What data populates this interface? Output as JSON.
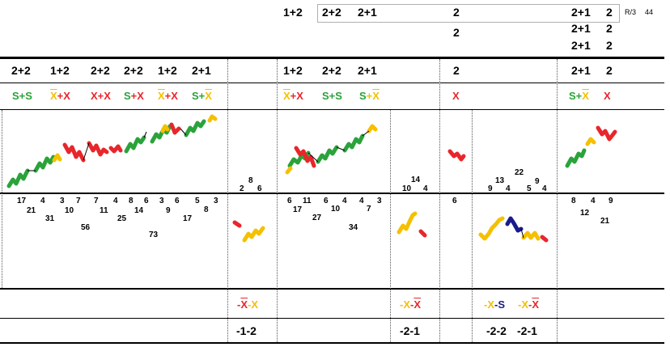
{
  "top": {
    "left_label": "1+2",
    "box_a": "2+2",
    "box_b": "2+1",
    "box_c": "2",
    "right_rows": [
      {
        "a": "2+1",
        "b": "2"
      },
      {
        "a": "2+1",
        "b": "2"
      },
      {
        "a": "2+1",
        "b": "2"
      }
    ],
    "mid_two": "2",
    "ratio": "R/3",
    "count": "44"
  },
  "header_row": {
    "col1": [
      "2+2",
      "1+2",
      "2+2",
      "2+2",
      "1+2",
      "2+1"
    ],
    "col3": [
      "1+2",
      "2+2",
      "2+1"
    ],
    "col5": "2",
    "col7": [
      "2+1",
      "2"
    ]
  },
  "code_row": {
    "col1": [
      {
        "a": "S",
        "op": "+",
        "b": "S"
      },
      {
        "a": "X",
        "op": "+",
        "b": "X"
      },
      {
        "a": "X",
        "op": "+",
        "b": "X"
      },
      {
        "a": "S",
        "op": "+",
        "b": "X"
      },
      {
        "a": "X",
        "op": "+",
        "b": "X"
      },
      {
        "a": "S",
        "op": "+",
        "b": "X"
      }
    ],
    "col3": [
      {
        "a": "X",
        "op": "+",
        "b": "X"
      },
      {
        "a": "S",
        "op": "+",
        "b": "S"
      },
      {
        "a": "S",
        "op": "+",
        "b": "X"
      }
    ],
    "col5": "X",
    "col7": [
      {
        "a": "S",
        "op": "+",
        "b": "X"
      },
      {
        "a": "X"
      }
    ]
  },
  "numbers": {
    "col1": [
      "17",
      "21",
      "4",
      "31",
      "3",
      "10",
      "7",
      "56",
      "7",
      "11",
      "4",
      "25",
      "8",
      "14",
      "6",
      "73",
      "3",
      "9",
      "6",
      "17",
      "5",
      "8",
      "3"
    ],
    "col2": [
      "2",
      "8",
      "6"
    ],
    "col3": [
      "6",
      "17",
      "11",
      "27",
      "6",
      "10",
      "4",
      "34",
      "4",
      "7",
      "3"
    ],
    "col4": [
      "10",
      "14",
      "4"
    ],
    "col5": "6",
    "col6": [
      "9",
      "13",
      "4",
      "22",
      "5",
      "9",
      "4"
    ],
    "col7": [
      "8",
      "12",
      "4",
      "21",
      "9"
    ]
  },
  "bottom": {
    "pair1": {
      "a": "X",
      "b": "X",
      "score": "-1-2"
    },
    "pair2": {
      "a": "X",
      "b": "X",
      "score": "-2-1"
    },
    "pair3": {
      "a": "X",
      "b": "S",
      "score": "-2-2"
    },
    "pair4": {
      "a": "X",
      "b": "X",
      "score": "-2-1"
    }
  },
  "colors": {
    "green": "#2aa33a",
    "red": "#e8262b",
    "yellow": "#f5c000",
    "navy": "#1a1a8c"
  }
}
